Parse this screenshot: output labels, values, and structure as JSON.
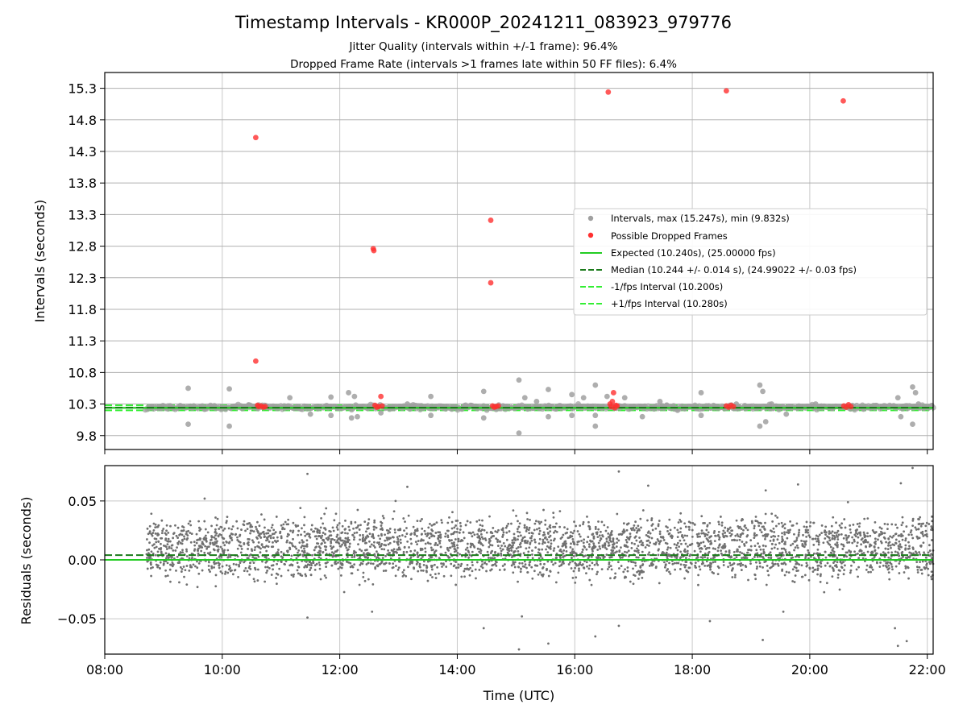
{
  "title": "Timestamp Intervals - KR000P_20241211_083923_979776",
  "subtitle_lines": [
    "Jitter Quality (intervals within +/-1 frame): 96.4%",
    "Dropped Frame Rate (intervals >1 frames late within 50 FF files): 6.4%"
  ],
  "colors": {
    "intervals": "#a0a0a0",
    "dropped": "#ff3030",
    "expected": "#22cc22",
    "median": "#1a7a1a",
    "fps_band": "#33ee33",
    "residuals": "#707070",
    "grid": "#b0b0b0"
  },
  "chart_data": [
    {
      "type": "scatter",
      "panel": "top",
      "ylabel": "Intervals (seconds)",
      "xlim": [
        8.0,
        22.1
      ],
      "ylim": [
        9.58,
        15.55
      ],
      "yticks": [
        "9.8",
        "10.3",
        "10.8",
        "11.3",
        "11.8",
        "12.3",
        "12.8",
        "13.3",
        "13.8",
        "14.3",
        "14.8",
        "15.3"
      ],
      "grid": true,
      "legend_position": "center-right",
      "legend": [
        "Intervals, max (15.247s), min (9.832s)",
        "Possible Dropped Frames",
        "Expected (10.240s), (25.00000 fps)",
        "Median (10.244 +/- 0.014 s), (24.99022 +/- 0.03 fps)",
        "-1/fps Interval (10.200s)",
        "+1/fps Interval (10.280s)"
      ],
      "expected": 10.24,
      "median": 10.244,
      "minus_one_frame": 10.2,
      "plus_one_frame": 10.28,
      "interval_range": [
        8.7,
        22.1
      ],
      "interval_outliers": [
        [
          9.42,
          10.55
        ],
        [
          9.42,
          9.98
        ],
        [
          10.12,
          10.54
        ],
        [
          10.12,
          9.95
        ],
        [
          10.45,
          10.28
        ],
        [
          11.15,
          10.4
        ],
        [
          11.5,
          10.14
        ],
        [
          11.85,
          10.41
        ],
        [
          11.85,
          10.12
        ],
        [
          12.15,
          10.48
        ],
        [
          12.2,
          10.08
        ],
        [
          12.25,
          10.42
        ],
        [
          12.3,
          10.1
        ],
        [
          12.7,
          10.16
        ],
        [
          13.15,
          10.3
        ],
        [
          13.55,
          10.42
        ],
        [
          13.55,
          10.12
        ],
        [
          14.45,
          10.5
        ],
        [
          14.45,
          10.08
        ],
        [
          15.05,
          10.68
        ],
        [
          15.05,
          9.84
        ],
        [
          15.15,
          10.4
        ],
        [
          15.35,
          10.34
        ],
        [
          15.55,
          10.53
        ],
        [
          15.55,
          10.1
        ],
        [
          15.95,
          10.45
        ],
        [
          15.95,
          10.12
        ],
        [
          16.35,
          10.6
        ],
        [
          16.35,
          10.12
        ],
        [
          16.15,
          10.4
        ],
        [
          16.55,
          10.42
        ],
        [
          16.35,
          9.95
        ],
        [
          16.85,
          10.4
        ],
        [
          17.15,
          10.1
        ],
        [
          17.45,
          10.34
        ],
        [
          17.75,
          10.2
        ],
        [
          18.15,
          10.48
        ],
        [
          18.15,
          10.12
        ],
        [
          18.75,
          10.3
        ],
        [
          19.15,
          10.6
        ],
        [
          19.15,
          9.95
        ],
        [
          19.2,
          10.5
        ],
        [
          19.25,
          10.02
        ],
        [
          19.35,
          10.3
        ],
        [
          19.6,
          10.14
        ],
        [
          20.1,
          10.3
        ],
        [
          21.5,
          10.4
        ],
        [
          21.55,
          10.1
        ],
        [
          21.75,
          10.57
        ],
        [
          21.8,
          10.48
        ],
        [
          21.75,
          9.98
        ],
        [
          21.85,
          10.3
        ]
      ],
      "dropped_frames": [
        [
          10.57,
          14.52
        ],
        [
          10.57,
          10.98
        ],
        [
          10.6,
          10.28
        ],
        [
          10.62,
          10.26
        ],
        [
          10.66,
          10.27
        ],
        [
          10.7,
          10.25
        ],
        [
          10.73,
          10.26
        ],
        [
          12.57,
          12.76
        ],
        [
          12.58,
          12.73
        ],
        [
          12.6,
          10.28
        ],
        [
          12.63,
          10.25
        ],
        [
          12.66,
          10.26
        ],
        [
          12.7,
          10.42
        ],
        [
          12.72,
          10.27
        ],
        [
          14.57,
          13.21
        ],
        [
          14.57,
          12.22
        ],
        [
          14.6,
          10.27
        ],
        [
          14.63,
          10.25
        ],
        [
          14.66,
          10.26
        ],
        [
          14.7,
          10.27
        ],
        [
          16.57,
          15.24
        ],
        [
          16.6,
          10.3
        ],
        [
          16.62,
          10.26
        ],
        [
          16.64,
          10.34
        ],
        [
          16.66,
          10.48
        ],
        [
          16.68,
          10.24
        ],
        [
          16.7,
          10.28
        ],
        [
          16.72,
          10.27
        ],
        [
          18.58,
          15.26
        ],
        [
          18.58,
          10.27
        ],
        [
          18.62,
          10.25
        ],
        [
          18.66,
          10.28
        ],
        [
          18.7,
          10.26
        ],
        [
          20.57,
          15.1
        ],
        [
          20.58,
          10.27
        ],
        [
          20.62,
          10.25
        ],
        [
          20.66,
          10.29
        ],
        [
          20.7,
          10.26
        ]
      ]
    },
    {
      "type": "scatter",
      "panel": "bottom",
      "xlabel": "Time (UTC)",
      "ylabel": "Residuals (seconds)",
      "xlim": [
        8.0,
        22.1
      ],
      "ylim": [
        -0.08,
        0.08
      ],
      "xticks": [
        "08:00",
        "10:00",
        "12:00",
        "14:00",
        "16:00",
        "18:00",
        "20:00",
        "22:00"
      ],
      "yticks": [
        "0.05",
        "0.00",
        "−0.05"
      ],
      "ytick_values": [
        0.05,
        0.0,
        -0.05
      ],
      "grid": true,
      "expected_residual": 0.0,
      "median_residual": 0.004,
      "clusters": [
        0.0,
        0.02
      ],
      "spread": 0.008,
      "range": [
        8.7,
        22.1
      ],
      "outliers": [
        [
          11.45,
          0.073
        ],
        [
          11.45,
          -0.049
        ],
        [
          9.7,
          0.052
        ],
        [
          12.55,
          -0.044
        ],
        [
          13.15,
          0.062
        ],
        [
          14.45,
          -0.058
        ],
        [
          15.05,
          -0.076
        ],
        [
          15.1,
          -0.048
        ],
        [
          15.55,
          -0.071
        ],
        [
          16.75,
          0.075
        ],
        [
          16.75,
          -0.056
        ],
        [
          16.35,
          -0.065
        ],
        [
          17.25,
          0.063
        ],
        [
          18.3,
          -0.052
        ],
        [
          19.2,
          -0.068
        ],
        [
          19.25,
          0.059
        ],
        [
          19.55,
          -0.044
        ],
        [
          19.8,
          0.064
        ],
        [
          21.45,
          -0.058
        ],
        [
          21.5,
          -0.073
        ],
        [
          21.55,
          0.065
        ],
        [
          21.65,
          -0.069
        ],
        [
          21.75,
          0.078
        ],
        [
          20.65,
          0.049
        ],
        [
          12.95,
          0.05
        ]
      ]
    }
  ]
}
